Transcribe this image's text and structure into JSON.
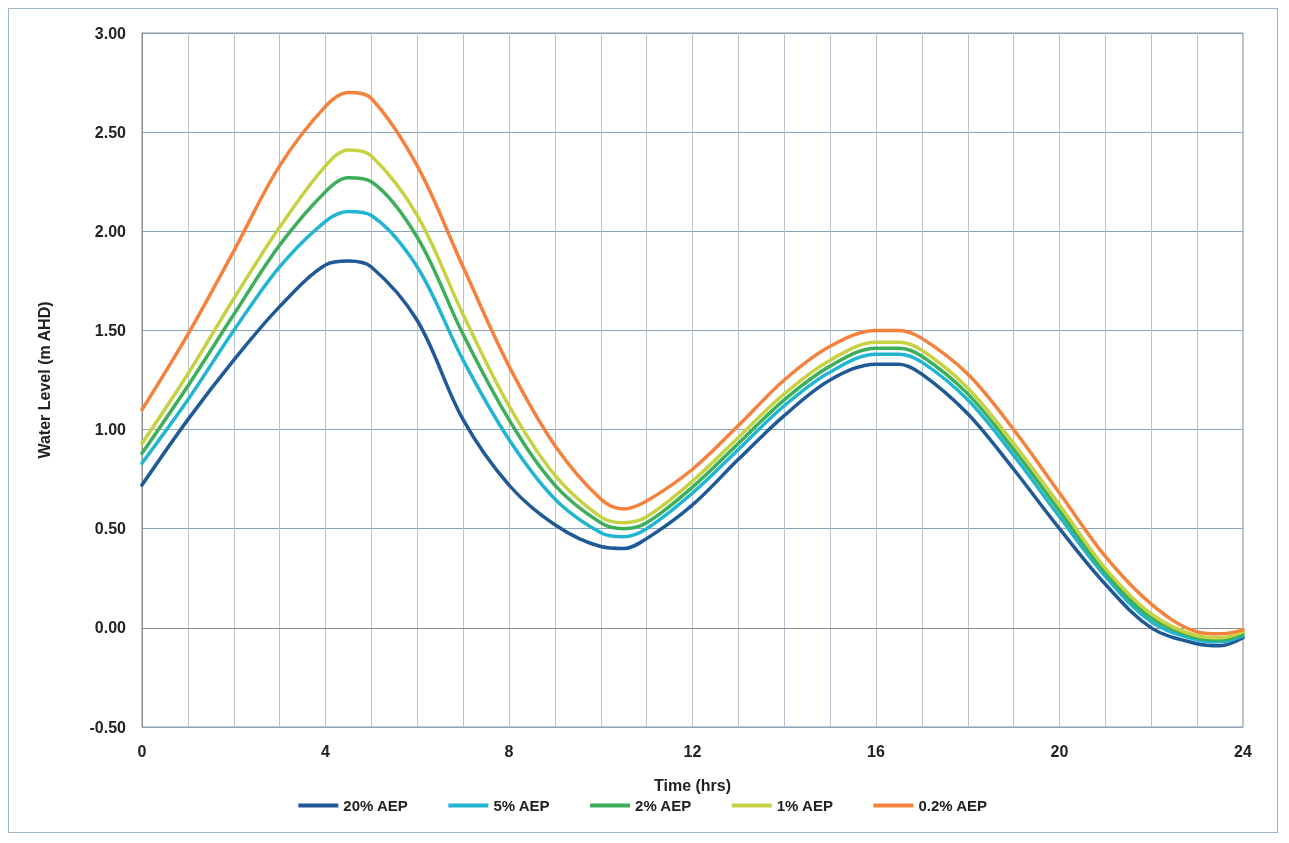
{
  "chart_data": {
    "type": "line",
    "xlabel": "Time (hrs)",
    "ylabel": "Water Level (m AHD)",
    "x": [
      0,
      1,
      2,
      3,
      4,
      4.5,
      5,
      6,
      7,
      8,
      9,
      10,
      10.5,
      11,
      12,
      13,
      14,
      15,
      16,
      16.5,
      17,
      18,
      19,
      20,
      21,
      22,
      23,
      23.5,
      24
    ],
    "series": [
      {
        "name": "20% AEP",
        "color": "#1f5a96",
        "values": [
          0.72,
          1.05,
          1.35,
          1.62,
          1.83,
          1.85,
          1.82,
          1.55,
          1.05,
          0.72,
          0.52,
          0.41,
          0.4,
          0.45,
          0.62,
          0.85,
          1.07,
          1.25,
          1.33,
          1.33,
          1.28,
          1.08,
          0.8,
          0.5,
          0.22,
          0.0,
          -0.08,
          -0.09,
          -0.05
        ]
      },
      {
        "name": "5% AEP",
        "color": "#22b5d2",
        "values": [
          0.83,
          1.15,
          1.5,
          1.82,
          2.05,
          2.1,
          2.08,
          1.82,
          1.35,
          0.95,
          0.65,
          0.48,
          0.46,
          0.5,
          0.68,
          0.9,
          1.12,
          1.29,
          1.38,
          1.38,
          1.34,
          1.15,
          0.87,
          0.56,
          0.26,
          0.03,
          -0.06,
          -0.07,
          -0.04
        ]
      },
      {
        "name": "2% AEP",
        "color": "#3daf5a",
        "values": [
          0.88,
          1.22,
          1.58,
          1.93,
          2.2,
          2.27,
          2.25,
          1.97,
          1.48,
          1.05,
          0.72,
          0.53,
          0.5,
          0.53,
          0.71,
          0.93,
          1.15,
          1.32,
          1.41,
          1.41,
          1.37,
          1.18,
          0.9,
          0.59,
          0.28,
          0.05,
          -0.05,
          -0.06,
          -0.03
        ]
      },
      {
        "name": "1% AEP",
        "color": "#c6d241",
        "values": [
          0.93,
          1.28,
          1.66,
          2.02,
          2.33,
          2.41,
          2.38,
          2.08,
          1.58,
          1.12,
          0.77,
          0.56,
          0.53,
          0.56,
          0.74,
          0.96,
          1.18,
          1.35,
          1.44,
          1.44,
          1.4,
          1.21,
          0.93,
          0.62,
          0.3,
          0.07,
          -0.04,
          -0.05,
          -0.02
        ]
      },
      {
        "name": "0.2% AEP",
        "color": "#f4823c",
        "values": [
          1.1,
          1.48,
          1.9,
          2.33,
          2.63,
          2.7,
          2.67,
          2.33,
          1.82,
          1.32,
          0.92,
          0.65,
          0.6,
          0.64,
          0.8,
          1.02,
          1.25,
          1.42,
          1.5,
          1.5,
          1.46,
          1.28,
          1.0,
          0.68,
          0.36,
          0.12,
          -0.02,
          -0.03,
          -0.01
        ]
      }
    ],
    "xlim": [
      0,
      24
    ],
    "xticks": [
      0,
      {
        "value": 1,
        "label": null
      },
      {
        "value": 2,
        "label": null
      },
      {
        "value": 3,
        "label": null
      },
      4,
      {
        "value": 5,
        "label": null
      },
      {
        "value": 6,
        "label": null
      },
      {
        "value": 7,
        "label": null
      },
      8,
      {
        "value": 9,
        "label": null
      },
      {
        "value": 10,
        "label": null
      },
      {
        "value": 11,
        "label": null
      },
      12,
      {
        "value": 13,
        "label": null
      },
      {
        "value": 14,
        "label": null
      },
      {
        "value": 15,
        "label": null
      },
      16,
      {
        "value": 17,
        "label": null
      },
      {
        "value": 18,
        "label": null
      },
      {
        "value": 19,
        "label": null
      },
      20,
      {
        "value": 21,
        "label": null
      },
      {
        "value": 22,
        "label": null
      },
      {
        "value": 23,
        "label": null
      },
      24
    ],
    "ylim": [
      -0.5,
      3
    ],
    "yticks": [
      {
        "value": -0.5,
        "label": "-0.50"
      },
      {
        "value": 0,
        "label": "0.00"
      },
      {
        "value": 0.5,
        "label": "0.50"
      },
      {
        "value": 1,
        "label": "1.00"
      },
      {
        "value": 1.5,
        "label": "1.50"
      },
      {
        "value": 2,
        "label": "2.00"
      },
      {
        "value": 2.5,
        "label": "2.50"
      },
      {
        "value": 3,
        "label": "3.00"
      }
    ],
    "grid": true,
    "legend": "bottom",
    "marker": "none",
    "line_style": "solid"
  }
}
